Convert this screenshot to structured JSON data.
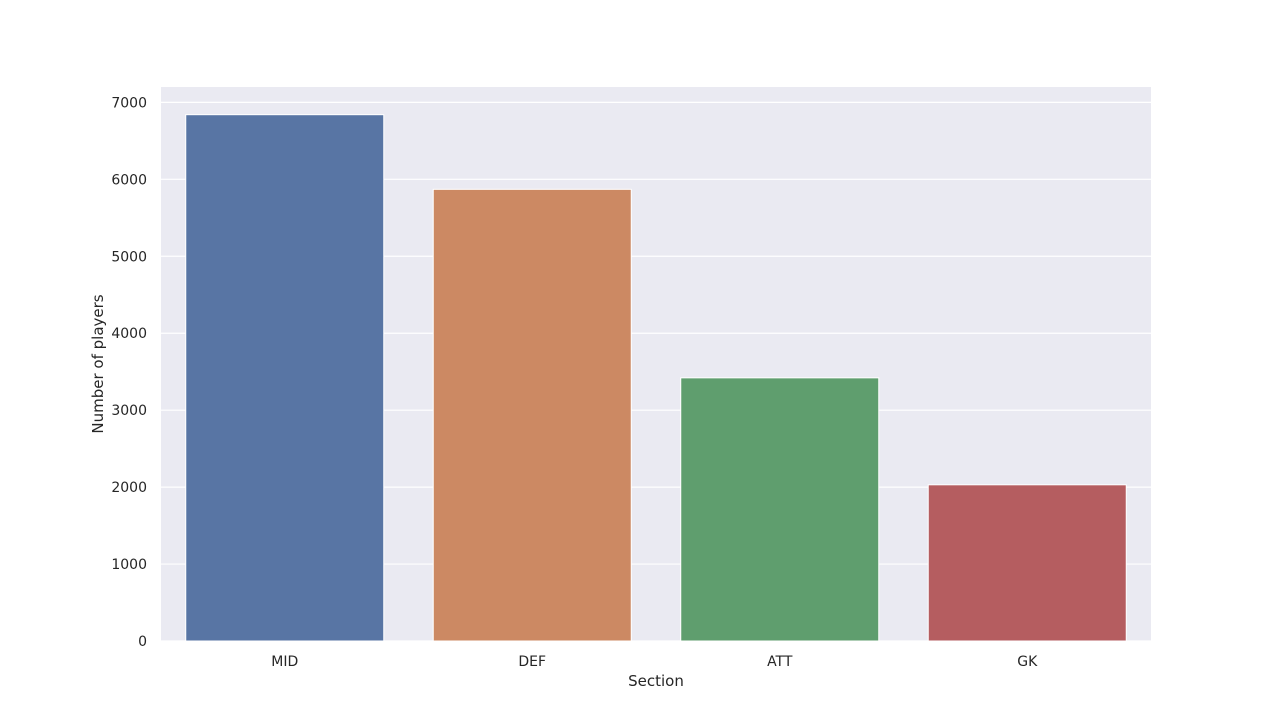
{
  "chart_data": {
    "type": "bar",
    "title": "",
    "xlabel": "Section",
    "ylabel": "Number of players",
    "categories": [
      "MID",
      "DEF",
      "ATT",
      "GK"
    ],
    "values": [
      6840,
      5870,
      3420,
      2030
    ],
    "ylim": [
      0,
      7200
    ],
    "yticks": [
      0,
      1000,
      2000,
      3000,
      4000,
      5000,
      6000,
      7000
    ],
    "grid": true,
    "legend": "none",
    "colors": [
      "#5875a4",
      "#cc8963",
      "#5f9e6e",
      "#b55d60"
    ],
    "background": "#eaeaf2"
  }
}
